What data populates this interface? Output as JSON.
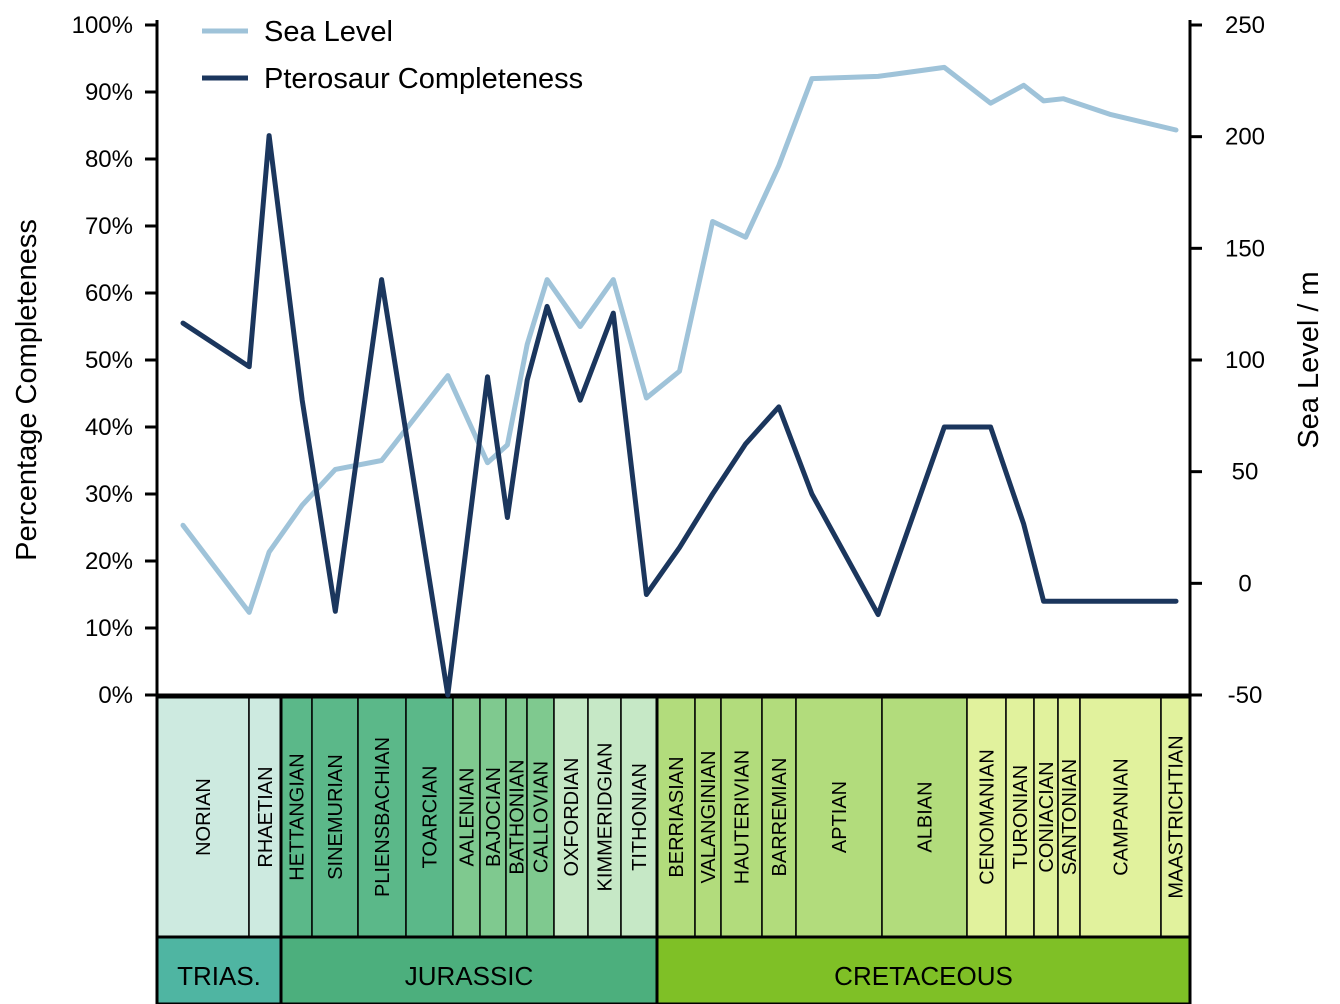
{
  "chart_data": {
    "type": "line",
    "ylabel": "Percentage Completeness",
    "y2label": "Sea Level / m",
    "yticks": [
      "0%",
      "10%",
      "20%",
      "30%",
      "40%",
      "50%",
      "60%",
      "70%",
      "80%",
      "90%",
      "100%"
    ],
    "ylim": [
      0,
      100
    ],
    "y2ticks": [
      "-50",
      "0",
      "50",
      "100",
      "150",
      "200",
      "250"
    ],
    "y2lim": [
      -50,
      250
    ],
    "legend_position": "top-left",
    "series": [
      {
        "name": "Sea Level",
        "axis": "right",
        "color": "#9fc3d9",
        "x": [
          0.0,
          1.0,
          1.3,
          1.8,
          2.3,
          3.0,
          4.0,
          4.6,
          4.9,
          5.2,
          5.5,
          6.0,
          6.5,
          7.0,
          7.5,
          8.0,
          8.5,
          9.0,
          9.5,
          10.5,
          11.5,
          12.2,
          12.7,
          13.0,
          13.3,
          14.0,
          15.0
        ],
        "values": [
          26,
          -13,
          14,
          35,
          51,
          55,
          93,
          54,
          62,
          107,
          136,
          115,
          136,
          83,
          95,
          162,
          155,
          187,
          226,
          227,
          231,
          215,
          223,
          216,
          217,
          210,
          203
        ]
      },
      {
        "name": "Pterosaur Completeness",
        "axis": "left",
        "color": "#1b365d",
        "x": [
          0.0,
          1.0,
          1.3,
          1.8,
          2.3,
          3.0,
          4.0,
          4.6,
          4.9,
          5.2,
          5.5,
          6.0,
          6.5,
          7.0,
          7.5,
          8.0,
          8.5,
          9.0,
          9.5,
          10.5,
          11.5,
          12.2,
          12.7,
          13.0,
          13.3,
          14.0,
          15.0
        ],
        "values": [
          55.5,
          49,
          83.5,
          44,
          12.5,
          62,
          0,
          47.5,
          26.5,
          47,
          58,
          44,
          57,
          15,
          22,
          30,
          37.5,
          43,
          30,
          12,
          40,
          40,
          25.5,
          14,
          14,
          14,
          14
        ]
      }
    ],
    "stages": [
      "NORIAN",
      "RHAETIAN",
      "HETTANGIAN",
      "SINEMURIAN",
      "PLIENSBACHIAN",
      "TOARCIAN",
      "AALENIAN",
      "BAJOCIAN",
      "BATHONIAN",
      "CALLOVIAN",
      "OXFORDIAN",
      "KIMMERIDGIAN",
      "TITHONIAN",
      "BERRIASIAN",
      "VALANGINIAN",
      "HAUTERIVIAN",
      "BARREMIAN",
      "APTIAN",
      "ALBIAN",
      "CENOMANIAN",
      "TURONIAN",
      "CONIACIAN",
      "SANTONIAN",
      "CAMPANIAN",
      "MAASTRICHTIAN"
    ],
    "periods": [
      "TRIAS.",
      "JURASSIC",
      "CRETACEOUS"
    ],
    "colors": {
      "sea_level": "#9fc3d9",
      "pterosaur": "#1b365d",
      "triassic_stage": "#cdeae0",
      "triassic_period": "#4fb5a2",
      "jurassic_early": "#5bb889",
      "jurassic_middle": "#7fc98f",
      "jurassic_late": "#c6e8c6",
      "jurassic_period": "#4caf7d",
      "cretaceous_early": "#b2dc7c",
      "cretaceous_late": "#e1f29d",
      "cretaceous_period": "#7fc026"
    }
  }
}
